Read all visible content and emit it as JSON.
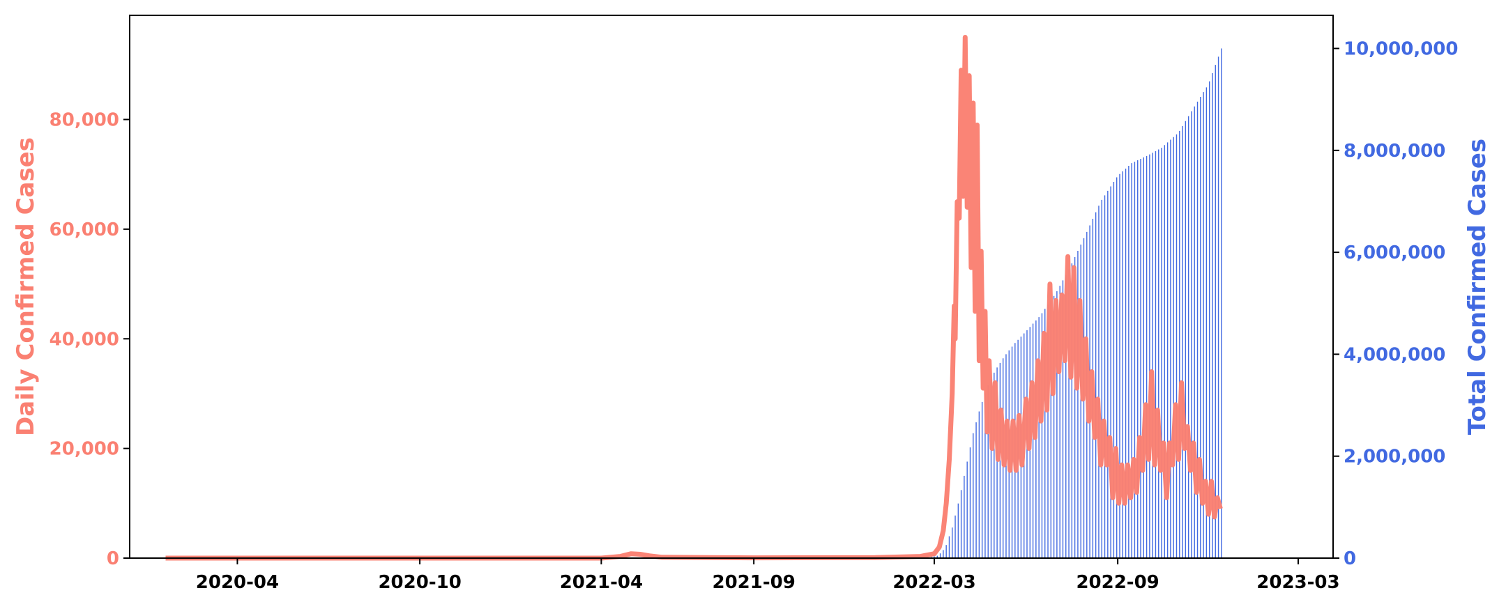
{
  "chart_data": {
    "type": "line",
    "x_axis": {
      "type": "date",
      "min": "2019-12-15",
      "max": "2023-04-05",
      "ticks": [
        {
          "date": "2020-04-01",
          "label": "2020-04"
        },
        {
          "date": "2020-10-01",
          "label": "2020-10"
        },
        {
          "date": "2021-04-01",
          "label": "2021-04"
        },
        {
          "date": "2021-09-01",
          "label": "2021-09"
        },
        {
          "date": "2022-03-01",
          "label": "2022-03"
        },
        {
          "date": "2022-09-01",
          "label": "2022-09"
        },
        {
          "date": "2023-03-01",
          "label": "2023-03"
        }
      ]
    },
    "y_left": {
      "label": "Daily Confirmed Cases",
      "min": 0,
      "max": 99000,
      "color": "#fa8072",
      "ticks": [
        {
          "value": 0,
          "label": "0"
        },
        {
          "value": 20000,
          "label": "20,000"
        },
        {
          "value": 40000,
          "label": "40,000"
        },
        {
          "value": 60000,
          "label": "60,000"
        },
        {
          "value": 80000,
          "label": "80,000"
        }
      ]
    },
    "y_right": {
      "label": "Total Confirmed Cases",
      "min": 0,
      "max": 10650000,
      "color": "#4169e1",
      "ticks": [
        {
          "value": 0,
          "label": "0"
        },
        {
          "value": 2000000,
          "label": "2,000,000"
        },
        {
          "value": 4000000,
          "label": "4,000,000"
        },
        {
          "value": 6000000,
          "label": "6,000,000"
        },
        {
          "value": 8000000,
          "label": "8,000,000"
        },
        {
          "value": 10000000,
          "label": "10,000,000"
        }
      ]
    },
    "series": [
      {
        "axis": "left",
        "style": "line",
        "color": "#fa8072",
        "points": [
          [
            "2020-01-20",
            0
          ],
          [
            "2020-06-01",
            0
          ],
          [
            "2020-12-01",
            0
          ],
          [
            "2021-04-01",
            0
          ],
          [
            "2021-04-20",
            300
          ],
          [
            "2021-05-01",
            800
          ],
          [
            "2021-05-10",
            700
          ],
          [
            "2021-05-20",
            400
          ],
          [
            "2021-06-01",
            150
          ],
          [
            "2021-09-01",
            50
          ],
          [
            "2022-01-01",
            100
          ],
          [
            "2022-02-15",
            300
          ],
          [
            "2022-03-01",
            800
          ],
          [
            "2022-03-06",
            2000
          ],
          [
            "2022-03-10",
            5000
          ],
          [
            "2022-03-13",
            10000
          ],
          [
            "2022-03-16",
            18000
          ],
          [
            "2022-03-19",
            30000
          ],
          [
            "2022-03-21",
            46000
          ],
          [
            "2022-03-22",
            40000
          ],
          [
            "2022-03-24",
            65000
          ],
          [
            "2022-03-26",
            62000
          ],
          [
            "2022-03-28",
            89000
          ],
          [
            "2022-03-30",
            66000
          ],
          [
            "2022-04-01",
            95000
          ],
          [
            "2022-04-03",
            64000
          ],
          [
            "2022-04-05",
            88000
          ],
          [
            "2022-04-07",
            53000
          ],
          [
            "2022-04-09",
            83000
          ],
          [
            "2022-04-11",
            45000
          ],
          [
            "2022-04-13",
            79000
          ],
          [
            "2022-04-15",
            36000
          ],
          [
            "2022-04-17",
            56000
          ],
          [
            "2022-04-19",
            31000
          ],
          [
            "2022-04-21",
            45000
          ],
          [
            "2022-04-23",
            23000
          ],
          [
            "2022-04-25",
            36000
          ],
          [
            "2022-04-28",
            20000
          ],
          [
            "2022-05-01",
            32000
          ],
          [
            "2022-05-04",
            18000
          ],
          [
            "2022-05-07",
            27000
          ],
          [
            "2022-05-10",
            17000
          ],
          [
            "2022-05-13",
            25000
          ],
          [
            "2022-05-16",
            16000
          ],
          [
            "2022-05-19",
            25000
          ],
          [
            "2022-05-22",
            16000
          ],
          [
            "2022-05-25",
            26000
          ],
          [
            "2022-05-28",
            17000
          ],
          [
            "2022-06-01",
            29000
          ],
          [
            "2022-06-04",
            20000
          ],
          [
            "2022-06-07",
            32000
          ],
          [
            "2022-06-10",
            22000
          ],
          [
            "2022-06-13",
            36000
          ],
          [
            "2022-06-16",
            25000
          ],
          [
            "2022-06-19",
            41000
          ],
          [
            "2022-06-22",
            27000
          ],
          [
            "2022-06-25",
            50000
          ],
          [
            "2022-06-28",
            30000
          ],
          [
            "2022-07-01",
            47000
          ],
          [
            "2022-07-04",
            34000
          ],
          [
            "2022-07-07",
            48000
          ],
          [
            "2022-07-10",
            36000
          ],
          [
            "2022-07-13",
            55000
          ],
          [
            "2022-07-16",
            33000
          ],
          [
            "2022-07-19",
            53000
          ],
          [
            "2022-07-22",
            31000
          ],
          [
            "2022-07-25",
            47000
          ],
          [
            "2022-07-28",
            29000
          ],
          [
            "2022-07-31",
            40000
          ],
          [
            "2022-08-03",
            25000
          ],
          [
            "2022-08-06",
            34000
          ],
          [
            "2022-08-09",
            22000
          ],
          [
            "2022-08-12",
            29000
          ],
          [
            "2022-08-15",
            17000
          ],
          [
            "2022-08-18",
            25000
          ],
          [
            "2022-08-21",
            17000
          ],
          [
            "2022-08-24",
            22000
          ],
          [
            "2022-08-27",
            11000
          ],
          [
            "2022-08-30",
            20000
          ],
          [
            "2022-09-02",
            10000
          ],
          [
            "2022-09-05",
            17000
          ],
          [
            "2022-09-08",
            10000
          ],
          [
            "2022-09-11",
            17000
          ],
          [
            "2022-09-14",
            11000
          ],
          [
            "2022-09-17",
            18000
          ],
          [
            "2022-09-20",
            12000
          ],
          [
            "2022-09-23",
            22000
          ],
          [
            "2022-09-26",
            16000
          ],
          [
            "2022-09-29",
            28000
          ],
          [
            "2022-10-02",
            18000
          ],
          [
            "2022-10-05",
            34000
          ],
          [
            "2022-10-08",
            17000
          ],
          [
            "2022-10-11",
            27000
          ],
          [
            "2022-10-14",
            16000
          ],
          [
            "2022-10-17",
            21000
          ],
          [
            "2022-10-20",
            11000
          ],
          [
            "2022-10-23",
            21000
          ],
          [
            "2022-10-26",
            17000
          ],
          [
            "2022-10-29",
            28000
          ],
          [
            "2022-11-01",
            18000
          ],
          [
            "2022-11-04",
            32000
          ],
          [
            "2022-11-07",
            20000
          ],
          [
            "2022-11-10",
            24000
          ],
          [
            "2022-11-13",
            16000
          ],
          [
            "2022-11-16",
            21000
          ],
          [
            "2022-11-19",
            12000
          ],
          [
            "2022-11-22",
            18000
          ],
          [
            "2022-11-25",
            10000
          ],
          [
            "2022-11-28",
            14000
          ],
          [
            "2022-12-01",
            8000
          ],
          [
            "2022-12-04",
            14000
          ],
          [
            "2022-12-07",
            7500
          ],
          [
            "2022-12-10",
            11000
          ],
          [
            "2022-12-13",
            9000
          ]
        ]
      },
      {
        "axis": "right",
        "style": "stem",
        "color": "#4169e1",
        "points": [
          [
            "2022-02-20",
            0
          ],
          [
            "2022-03-05",
            50000
          ],
          [
            "2022-03-12",
            200000
          ],
          [
            "2022-03-19",
            600000
          ],
          [
            "2022-03-26",
            1150000
          ],
          [
            "2022-04-02",
            1800000
          ],
          [
            "2022-04-09",
            2450000
          ],
          [
            "2022-04-16",
            2950000
          ],
          [
            "2022-04-23",
            3350000
          ],
          [
            "2022-05-01",
            3680000
          ],
          [
            "2022-05-10",
            3950000
          ],
          [
            "2022-05-20",
            4200000
          ],
          [
            "2022-06-01",
            4450000
          ],
          [
            "2022-06-15",
            4750000
          ],
          [
            "2022-07-01",
            5200000
          ],
          [
            "2022-07-15",
            5700000
          ],
          [
            "2022-08-01",
            6400000
          ],
          [
            "2022-08-15",
            7000000
          ],
          [
            "2022-09-01",
            7500000
          ],
          [
            "2022-09-15",
            7750000
          ],
          [
            "2022-10-01",
            7900000
          ],
          [
            "2022-10-15",
            8050000
          ],
          [
            "2022-11-01",
            8350000
          ],
          [
            "2022-11-15",
            8800000
          ],
          [
            "2022-12-01",
            9300000
          ],
          [
            "2022-12-14",
            10000000
          ]
        ]
      }
    ]
  }
}
